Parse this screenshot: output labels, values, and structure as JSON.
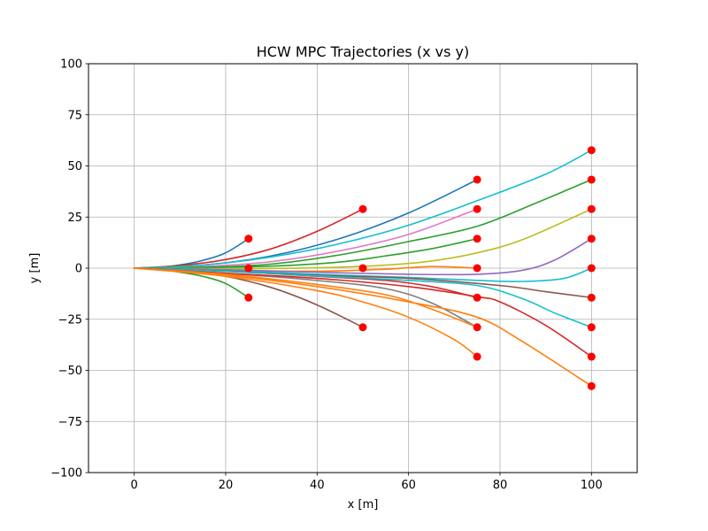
{
  "chart_data": {
    "type": "line",
    "title": "HCW MPC Trajectories (x vs y)",
    "xlabel": "x [m]",
    "ylabel": "y [m]",
    "xlim": [
      -10,
      110
    ],
    "ylim": [
      -100,
      100
    ],
    "xticks": [
      0,
      20,
      40,
      60,
      80,
      100
    ],
    "yticks": [
      -100,
      -75,
      -50,
      -25,
      0,
      25,
      50,
      75,
      100
    ],
    "xtick_labels": [
      "0",
      "20",
      "40",
      "60",
      "80",
      "100"
    ],
    "ytick_labels": [
      "−100",
      "−75",
      "−50",
      "−25",
      "0",
      "25",
      "50",
      "75",
      "100"
    ],
    "grid": true,
    "legend": false,
    "endpoint_color": "#ff0000",
    "series": [
      {
        "color": "#1f77b4",
        "points": [
          [
            0,
            0
          ],
          [
            5,
            0.4
          ],
          [
            10,
            1.6
          ],
          [
            15,
            3.8
          ],
          [
            20,
            7.5
          ],
          [
            25,
            14.4
          ]
        ]
      },
      {
        "color": "#2ca02c",
        "points": [
          [
            0,
            0
          ],
          [
            5,
            -0.6
          ],
          [
            10,
            -2
          ],
          [
            15,
            -4
          ],
          [
            20,
            -7.5
          ],
          [
            25,
            -14.4
          ]
        ]
      },
      {
        "color": "#d62728",
        "points": [
          [
            0,
            0
          ],
          [
            10,
            1.3
          ],
          [
            20,
            4.2
          ],
          [
            30,
            9.5
          ],
          [
            40,
            18
          ],
          [
            50,
            28.9
          ]
        ]
      },
      {
        "color": "#8c564b",
        "points": [
          [
            0,
            0
          ],
          [
            10,
            -1.2
          ],
          [
            20,
            -4
          ],
          [
            30,
            -9.5
          ],
          [
            40,
            -18
          ],
          [
            50,
            -28.9
          ]
        ]
      },
      {
        "color": "#1f77b4",
        "points": [
          [
            0,
            0
          ],
          [
            15,
            1.5
          ],
          [
            30,
            6
          ],
          [
            45,
            14.5
          ],
          [
            60,
            27
          ],
          [
            75,
            43.3
          ]
        ]
      },
      {
        "color": "#e377c2",
        "points": [
          [
            0,
            0
          ],
          [
            15,
            0.8
          ],
          [
            30,
            3.2
          ],
          [
            45,
            8.5
          ],
          [
            60,
            16.5
          ],
          [
            75,
            28.9
          ]
        ]
      },
      {
        "color": "#2ca02c",
        "points": [
          [
            0,
            0
          ],
          [
            15,
            0.3
          ],
          [
            30,
            1
          ],
          [
            45,
            3
          ],
          [
            55,
            6
          ],
          [
            65,
            9.5
          ],
          [
            75,
            14.4
          ]
        ]
      },
      {
        "color": "#17becf",
        "points": [
          [
            0,
            0
          ],
          [
            15,
            1.5
          ],
          [
            30,
            5.5
          ],
          [
            45,
            12
          ],
          [
            60,
            21
          ],
          [
            75,
            33
          ],
          [
            90,
            46
          ],
          [
            100,
            57.7
          ]
        ]
      },
      {
        "color": "#2ca02c",
        "points": [
          [
            0,
            0
          ],
          [
            15,
            0.4
          ],
          [
            30,
            2
          ],
          [
            45,
            6.5
          ],
          [
            60,
            13
          ],
          [
            75,
            20.5
          ],
          [
            88,
            32
          ],
          [
            100,
            43.3
          ]
        ]
      },
      {
        "color": "#bcbd22",
        "points": [
          [
            0,
            0
          ],
          [
            20,
            -0.3
          ],
          [
            40,
            0.2
          ],
          [
            55,
            1.5
          ],
          [
            65,
            3.5
          ],
          [
            75,
            7.5
          ],
          [
            85,
            14
          ],
          [
            100,
            28.9
          ]
        ]
      },
      {
        "color": "#ff7f0e",
        "points": [
          [
            0,
            0
          ],
          [
            20,
            -1
          ],
          [
            40,
            -1.5
          ],
          [
            55,
            -0.5
          ],
          [
            65,
            0.8
          ],
          [
            75,
            0
          ]
        ]
      },
      {
        "color": "#9467bd",
        "points": [
          [
            0,
            0
          ],
          [
            20,
            -0.8
          ],
          [
            40,
            -2
          ],
          [
            60,
            -3
          ],
          [
            75,
            -3
          ],
          [
            85,
            -1
          ],
          [
            92,
            4
          ],
          [
            100,
            14.4
          ]
        ]
      },
      {
        "color": "#17becf",
        "points": [
          [
            0,
            0
          ],
          [
            20,
            -1.2
          ],
          [
            40,
            -3
          ],
          [
            60,
            -4.5
          ],
          [
            75,
            -6
          ],
          [
            85,
            -6.5
          ],
          [
            94,
            -5
          ],
          [
            100,
            0
          ]
        ]
      },
      {
        "color": "#8c564b",
        "points": [
          [
            0,
            0
          ],
          [
            20,
            -1.5
          ],
          [
            40,
            -3.5
          ],
          [
            60,
            -5
          ],
          [
            80,
            -8.5
          ],
          [
            90,
            -11.5
          ],
          [
            100,
            -14.4
          ]
        ]
      },
      {
        "color": "#d62728",
        "points": [
          [
            0,
            0
          ],
          [
            20,
            -1.5
          ],
          [
            40,
            -4
          ],
          [
            55,
            -6
          ],
          [
            65,
            -9
          ],
          [
            75,
            -14.4
          ]
        ]
      },
      {
        "color": "#17becf",
        "points": [
          [
            0,
            0
          ],
          [
            20,
            -1.6
          ],
          [
            40,
            -3.8
          ],
          [
            60,
            -6
          ],
          [
            75,
            -8.5
          ],
          [
            85,
            -15
          ],
          [
            92,
            -22
          ],
          [
            100,
            -28.9
          ]
        ]
      },
      {
        "color": "#7f7f7f",
        "points": [
          [
            0,
            0
          ],
          [
            20,
            -2.5
          ],
          [
            40,
            -6
          ],
          [
            55,
            -10
          ],
          [
            65,
            -17
          ],
          [
            75,
            -28.9
          ]
        ]
      },
      {
        "color": "#d62728",
        "points": [
          [
            0,
            0
          ],
          [
            20,
            -2.5
          ],
          [
            40,
            -5
          ],
          [
            60,
            -9
          ],
          [
            75,
            -14
          ],
          [
            80,
            -16.5
          ],
          [
            90,
            -28
          ],
          [
            100,
            -43.3
          ]
        ]
      },
      {
        "color": "#ff7f0e",
        "points": [
          [
            0,
            0
          ],
          [
            20,
            -3
          ],
          [
            40,
            -8
          ],
          [
            55,
            -13
          ],
          [
            65,
            -20
          ],
          [
            75,
            -28.9
          ]
        ]
      },
      {
        "color": "#ff7f0e",
        "points": [
          [
            0,
            0
          ],
          [
            20,
            -4
          ],
          [
            40,
            -11
          ],
          [
            50,
            -16.5
          ],
          [
            60,
            -24
          ],
          [
            70,
            -35
          ],
          [
            75,
            -43.3
          ]
        ]
      },
      {
        "color": "#ff7f0e",
        "points": [
          [
            0,
            0
          ],
          [
            20,
            -3.5
          ],
          [
            40,
            -9
          ],
          [
            60,
            -16.5
          ],
          [
            75,
            -24
          ],
          [
            85,
            -36
          ],
          [
            100,
            -57.7
          ]
        ]
      }
    ],
    "endpoints": [
      [
        25,
        14.4
      ],
      [
        25,
        0
      ],
      [
        25,
        -14.4
      ],
      [
        50,
        28.9
      ],
      [
        50,
        0
      ],
      [
        50,
        -28.9
      ],
      [
        75,
        43.3
      ],
      [
        75,
        28.9
      ],
      [
        75,
        14.4
      ],
      [
        75,
        0
      ],
      [
        75,
        -14.4
      ],
      [
        75,
        -28.9
      ],
      [
        75,
        -43.3
      ],
      [
        100,
        57.7
      ],
      [
        100,
        43.3
      ],
      [
        100,
        28.9
      ],
      [
        100,
        14.4
      ],
      [
        100,
        0
      ],
      [
        100,
        -14.4
      ],
      [
        100,
        -28.9
      ],
      [
        100,
        -43.3
      ],
      [
        100,
        -57.7
      ]
    ]
  }
}
